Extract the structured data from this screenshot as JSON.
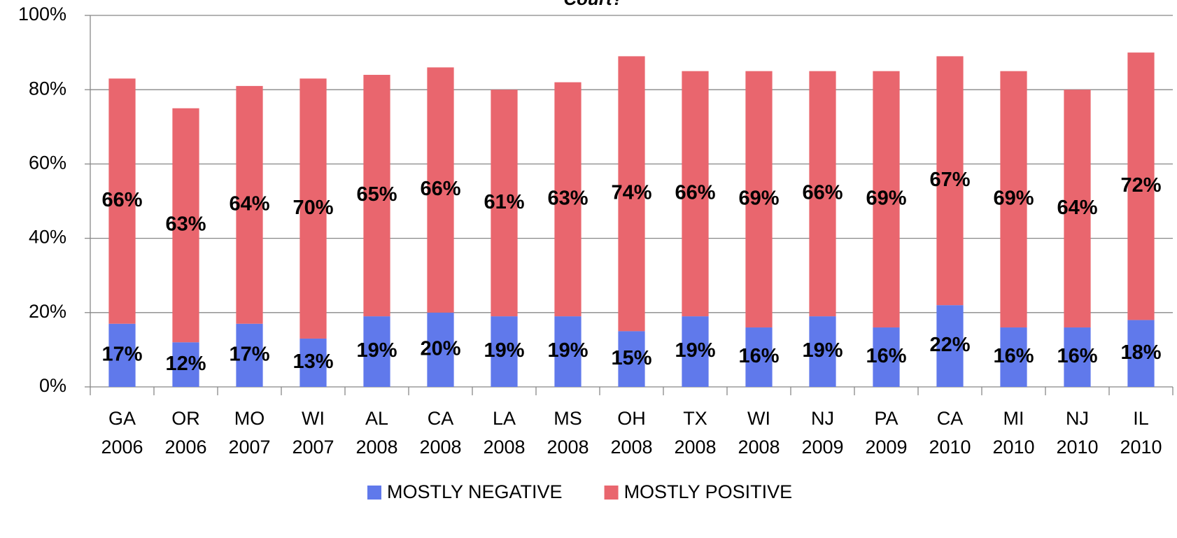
{
  "chart_data": {
    "type": "stacked_bar",
    "title": "Court?",
    "categories": [
      "GA 2006",
      "OR 2006",
      "MO 2007",
      "WI 2007",
      "AL 2008",
      "CA 2008",
      "LA 2008",
      "MS 2008",
      "OH 2008",
      "TX 2008",
      "WI 2008",
      "NJ 2009",
      "PA 2009",
      "CA 2010",
      "MI 2010",
      "NJ 2010",
      "IL 2010"
    ],
    "series": [
      {
        "name": "MOSTLY NEGATIVE",
        "color": "#6079EB",
        "values": [
          17,
          12,
          17,
          13,
          19,
          20,
          19,
          19,
          15,
          19,
          16,
          19,
          16,
          22,
          16,
          16,
          18
        ],
        "value_labels": [
          "17%",
          "12%",
          "17%",
          "13%",
          "19%",
          "20%",
          "19%",
          "19%",
          "15%",
          "19%",
          "16%",
          "19%",
          "16%",
          "22%",
          "16%",
          "16%",
          "18%"
        ]
      },
      {
        "name": "MOSTLY POSITIVE",
        "color": "#E9666E",
        "values": [
          66,
          63,
          64,
          70,
          65,
          66,
          61,
          63,
          74,
          66,
          69,
          66,
          69,
          67,
          69,
          64,
          72
        ],
        "value_labels": [
          "66%",
          "63%",
          "64%",
          "70%",
          "65%",
          "66%",
          "61%",
          "63%",
          "74%",
          "66%",
          "69%",
          "66%",
          "69%",
          "67%",
          "69%",
          "64%",
          "72%"
        ]
      }
    ],
    "ylim": [
      0,
      100
    ],
    "yticks": [
      {
        "value": 0,
        "label": "0%"
      },
      {
        "value": 20,
        "label": "20%"
      },
      {
        "value": 40,
        "label": "40%"
      },
      {
        "value": 60,
        "label": "60%"
      },
      {
        "value": 80,
        "label": "80%"
      },
      {
        "value": 100,
        "label": "100%"
      }
    ],
    "grid": true,
    "legend": "bottom"
  }
}
